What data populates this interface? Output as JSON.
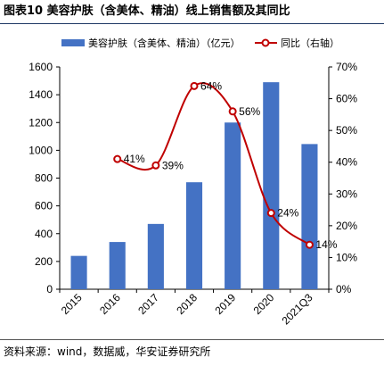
{
  "header": {
    "title": "图表10  美容护肤（含美体、精油）线上销售额及其同比"
  },
  "footer": {
    "source": "资料来源：wind，数据威，华安证券研究所"
  },
  "colors": {
    "bar": "#4472c4",
    "line": "#c00000",
    "marker_fill": "#ffffff",
    "title_rule": "#1f3864"
  },
  "chart_data": {
    "type": "bar",
    "categories": [
      "2015",
      "2016",
      "2017",
      "2018",
      "2019",
      "2020",
      "2021Q3"
    ],
    "series": [
      {
        "name": "美容护肤（含美体、精油）（亿元）",
        "type": "bar",
        "axis": "left",
        "values": [
          240,
          340,
          470,
          770,
          1200,
          1490,
          1045
        ]
      },
      {
        "name": "同比（右轴）",
        "type": "line",
        "axis": "right",
        "values": [
          null,
          0.41,
          0.39,
          0.64,
          0.56,
          0.24,
          0.14
        ],
        "labels": [
          "",
          "41%",
          "39%",
          "64%",
          "56%",
          "24%",
          "14%"
        ]
      }
    ],
    "ylim": [
      0,
      1600
    ],
    "y_ticks": [
      "0",
      "200",
      "400",
      "600",
      "800",
      "1000",
      "1200",
      "1400",
      "1600"
    ],
    "y2lim": [
      0,
      0.7
    ],
    "y2_ticks": [
      "0%",
      "10%",
      "20%",
      "30%",
      "40%",
      "50%",
      "60%",
      "70%"
    ],
    "legend_position": "top",
    "grid": false
  }
}
